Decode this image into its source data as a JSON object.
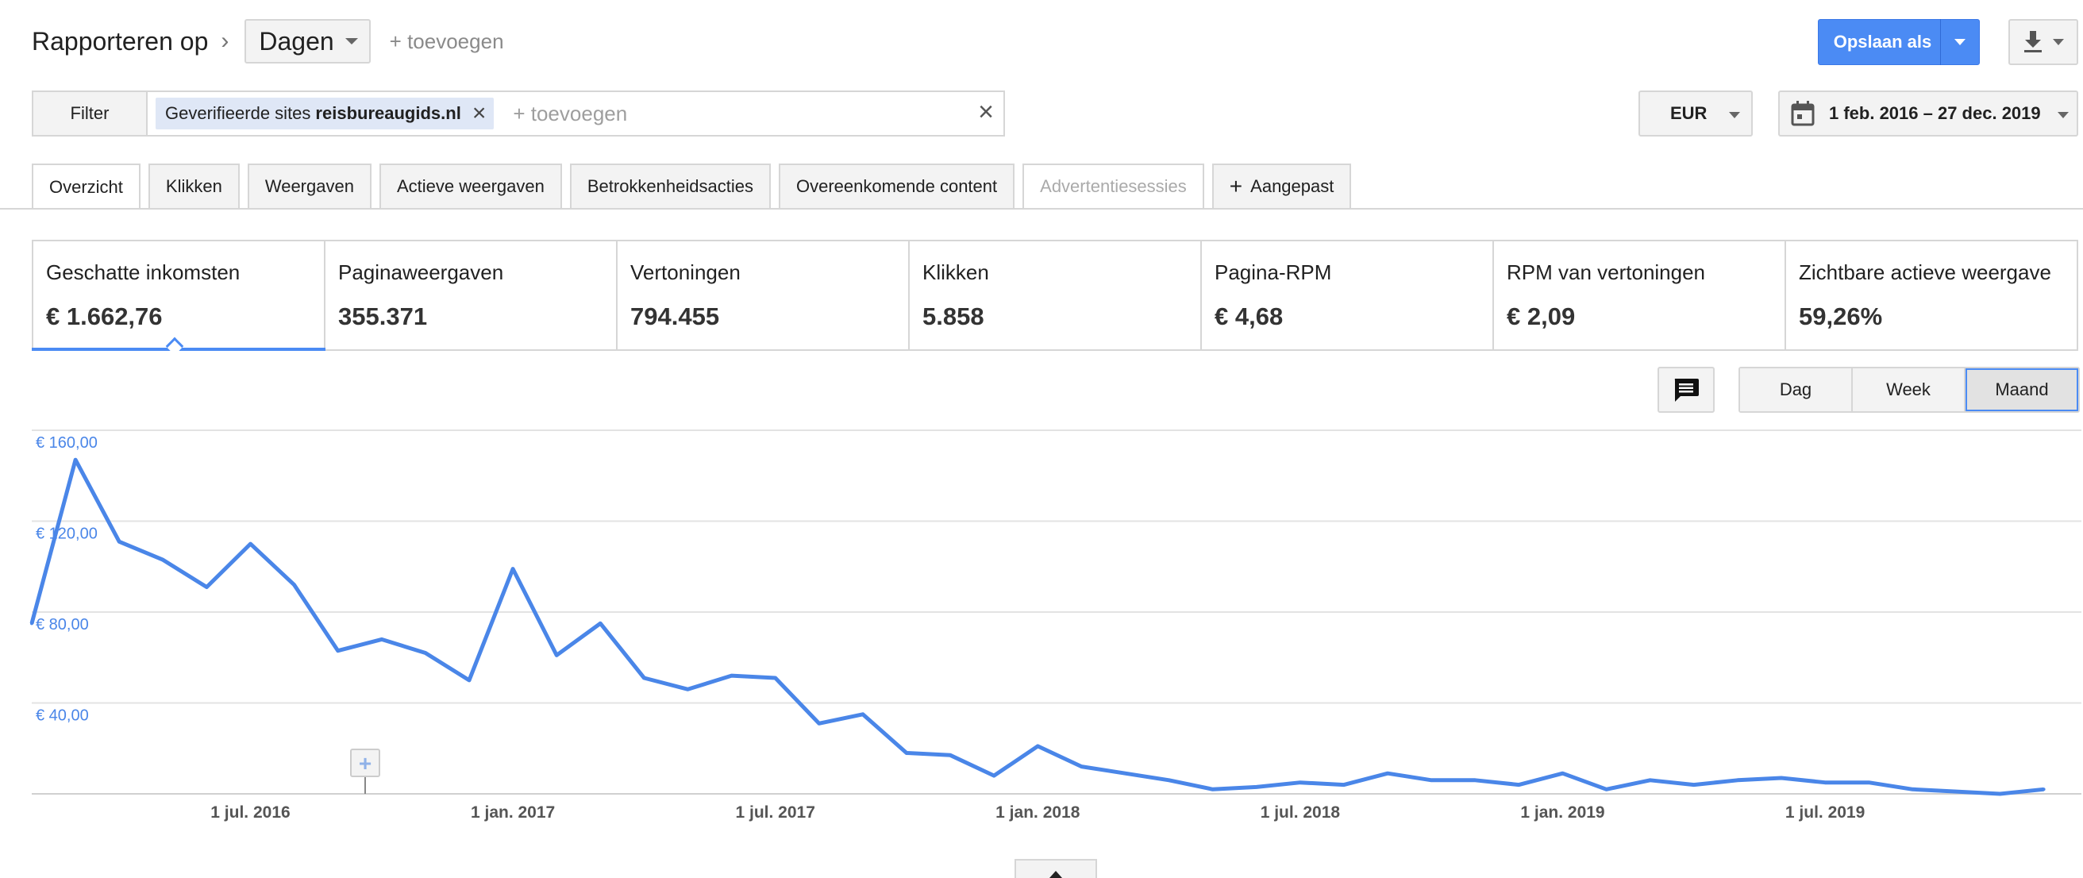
{
  "header": {
    "title": "Rapporteren op",
    "dimension_dropdown": "Dagen",
    "add_label": "+ toevoegen",
    "save_label": "Opslaan als"
  },
  "filter": {
    "button_label": "Filter",
    "chip_prefix": "Geverifieerde sites",
    "chip_value": "reisbureaugids.nl",
    "add_placeholder": "+ toevoegen"
  },
  "currency": "EUR",
  "date_range": "1 feb. 2016 – 27 dec. 2019",
  "tabs": [
    {
      "label": "Overzicht",
      "state": "active"
    },
    {
      "label": "Klikken",
      "state": "normal"
    },
    {
      "label": "Weergaven",
      "state": "normal"
    },
    {
      "label": "Actieve weergaven",
      "state": "normal"
    },
    {
      "label": "Betrokkenheidsacties",
      "state": "normal"
    },
    {
      "label": "Overeenkomende content",
      "state": "normal"
    },
    {
      "label": "Advertentiesessies",
      "state": "disabled"
    },
    {
      "label": "Aangepast",
      "state": "normal"
    }
  ],
  "kpis": [
    {
      "label": "Geschatte inkomsten",
      "value": "€ 1.662,76"
    },
    {
      "label": "Paginaweergaven",
      "value": "355.371"
    },
    {
      "label": "Vertoningen",
      "value": "794.455"
    },
    {
      "label": "Klikken",
      "value": "5.858"
    },
    {
      "label": "Pagina-RPM",
      "value": "€ 4,68"
    },
    {
      "label": "RPM van vertoningen",
      "value": "€ 2,09"
    },
    {
      "label": "Zichtbare actieve weergave",
      "value": "59,26%"
    }
  ],
  "periods": [
    {
      "label": "Dag",
      "active": false
    },
    {
      "label": "Week",
      "active": false
    },
    {
      "label": "Maand",
      "active": true
    }
  ],
  "colors": {
    "accent": "#4b8bf4",
    "line": "#4a86e8"
  },
  "chart_data": {
    "type": "line",
    "y_tick_labels": [
      "€ 40,00",
      "€ 80,00",
      "€ 120,00",
      "€ 160,00"
    ],
    "y_ticks": [
      40,
      80,
      120,
      160
    ],
    "ylim": [
      0,
      160
    ],
    "x_tick_labels": [
      "1 jul. 2016",
      "1 jan. 2017",
      "1 jul. 2017",
      "1 jan. 2018",
      "1 jul. 2018",
      "1 jan. 2019",
      "1 jul. 2019"
    ],
    "x_tick_months": [
      5,
      11,
      17,
      23,
      29,
      35,
      41
    ],
    "grid": true,
    "series": [
      {
        "months": [
          "2016-02",
          "2016-03",
          "2016-04",
          "2016-05",
          "2016-06",
          "2016-07",
          "2016-08",
          "2016-09",
          "2016-10",
          "2016-11",
          "2016-12",
          "2017-01",
          "2017-02",
          "2017-03",
          "2017-04",
          "2017-05",
          "2017-06",
          "2017-07",
          "2017-08",
          "2017-09",
          "2017-10",
          "2017-11",
          "2017-12",
          "2018-01",
          "2018-02",
          "2018-03",
          "2018-04",
          "2018-05",
          "2018-06",
          "2018-07",
          "2018-08",
          "2018-09",
          "2018-10",
          "2018-11",
          "2018-12",
          "2019-01",
          "2019-02",
          "2019-03",
          "2019-04",
          "2019-05",
          "2019-06",
          "2019-07",
          "2019-08",
          "2019-09",
          "2019-10",
          "2019-11",
          "2019-12"
        ],
        "values": [
          75,
          147,
          111,
          103,
          91,
          110,
          92,
          63,
          68,
          62,
          50,
          99,
          61,
          75,
          51,
          46,
          52,
          51,
          31,
          35,
          18,
          17,
          8,
          21,
          12,
          9,
          6,
          2,
          3,
          5,
          4,
          9,
          6,
          6,
          4,
          9,
          2,
          6,
          4,
          6,
          7,
          5,
          5,
          2,
          1,
          0,
          2
        ]
      }
    ]
  }
}
